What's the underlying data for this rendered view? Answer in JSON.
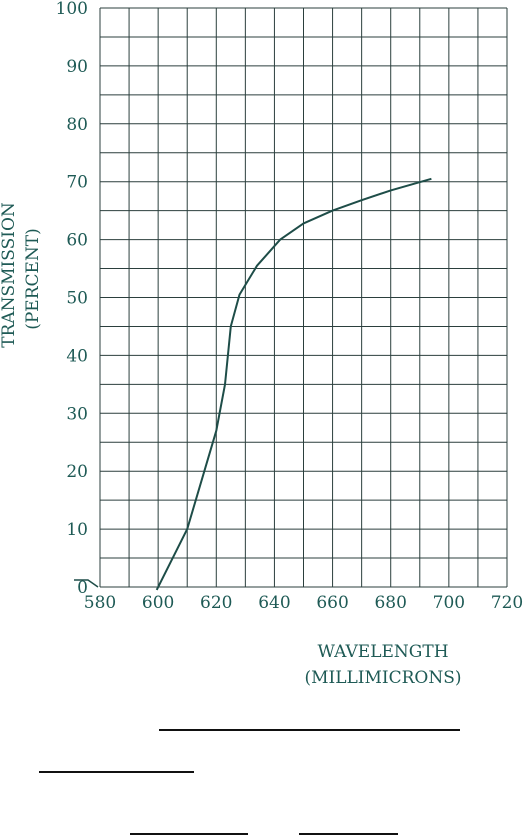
{
  "chart_data": {
    "type": "line",
    "title": "",
    "xlabel": [
      "WAVELENGTH",
      "(MILLIMICRONS)"
    ],
    "ylabel": [
      "TRANSMISSION",
      "(PERCENT)"
    ],
    "xlim": [
      580,
      720
    ],
    "ylim": [
      0,
      100
    ],
    "x_ticks": [
      580,
      600,
      620,
      640,
      660,
      680,
      700,
      720
    ],
    "y_ticks": [
      0,
      10,
      20,
      30,
      40,
      50,
      60,
      70,
      80,
      90,
      100
    ],
    "grid": true,
    "grid_step": {
      "x": 10,
      "y": 5
    },
    "series": [
      {
        "x": [
          599.5,
          610,
          620,
          623,
          625,
          628,
          634,
          642,
          650,
          660,
          670,
          680,
          694
        ],
        "y": [
          -0.5,
          10,
          27,
          35,
          45,
          50.5,
          55.5,
          60,
          62.8,
          65,
          66.8,
          68.5,
          70.5
        ]
      }
    ],
    "colors": {
      "line": "#1e4d48",
      "grid": "#2b3f3d",
      "text": "#1e5a55"
    }
  }
}
